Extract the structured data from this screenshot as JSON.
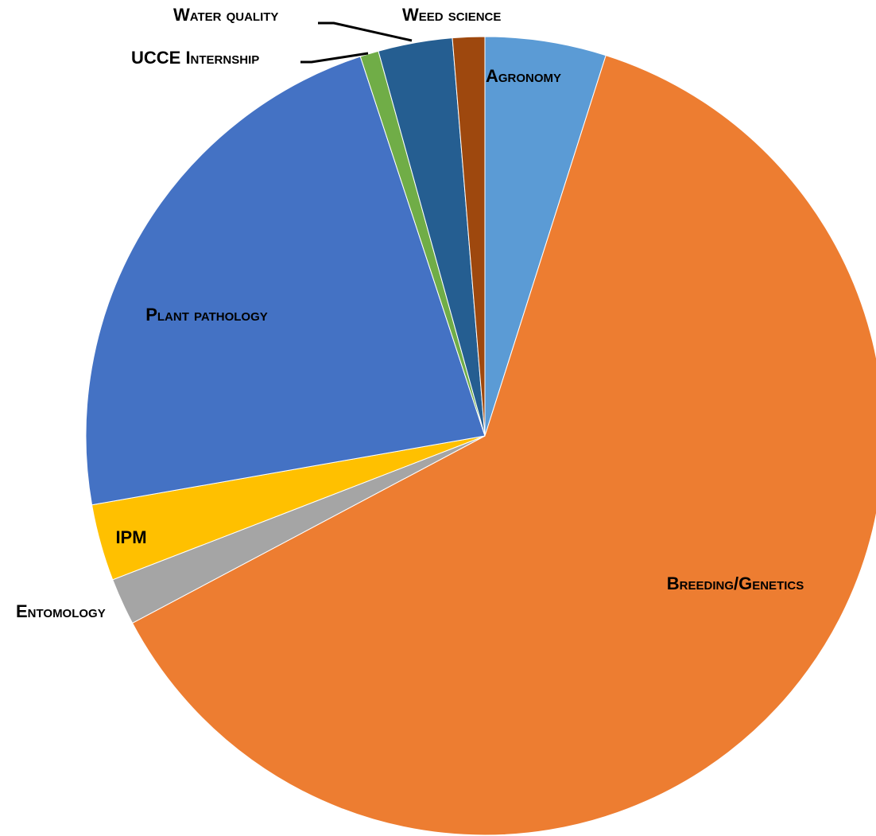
{
  "chart_data": {
    "type": "pie",
    "categories": [
      "Agronomy",
      "Breeding/Genetics",
      "Entomology",
      "IPM",
      "Plant pathology",
      "UCCE Internship",
      "Water quality",
      "Weed science"
    ],
    "values": [
      4.9,
      62.3,
      1.9,
      3.1,
      22.7,
      0.75,
      3.0,
      1.3
    ],
    "colors": [
      "#5b9bd5",
      "#ed7d31",
      "#a5a5a5",
      "#ffc000",
      "#4472c4",
      "#70ad47",
      "#255e91",
      "#9e480e"
    ]
  }
}
